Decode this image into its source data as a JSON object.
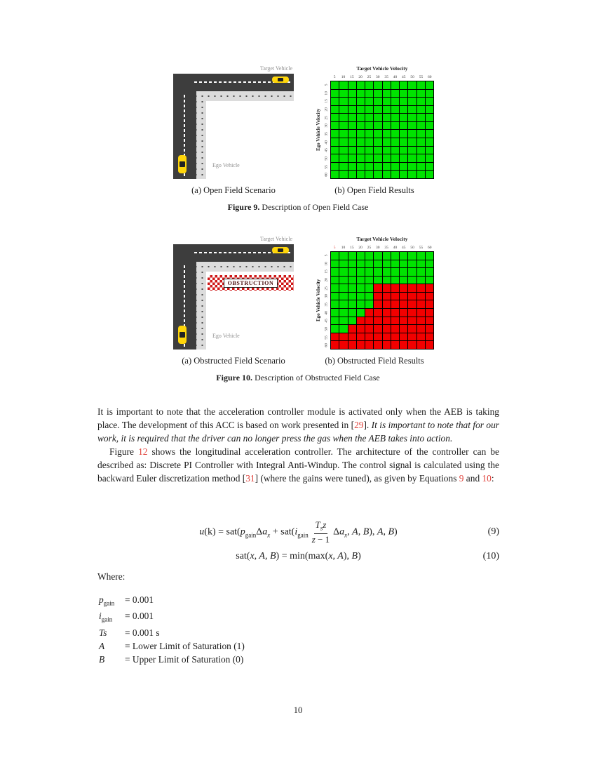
{
  "colors": {
    "green": "#00e300",
    "red": "#f20000",
    "ref_red": "#e0433c",
    "road": "#3d3d3d",
    "sidewalk": "#dcdcdc",
    "car_yellow": "#ffd60a",
    "checker_red": "#cf1717",
    "obstruction_text": "#4a0e0e",
    "label_gray": "#8f8f8f"
  },
  "figures": [
    {
      "scenario": {
        "target_label": "Target Vehicle",
        "ego_label": "Ego Vehicle",
        "caption": "(a) Open Field Scenario"
      },
      "results_caption": "(b) Open Field Results",
      "caption_label": "Figure 9.",
      "caption_text": " Description of Open Field Case"
    },
    {
      "scenario": {
        "target_label": "Target Vehicle",
        "ego_label": "Ego Vehicle",
        "obstruction_label": "OBSTRUCTION",
        "caption": "(a) Obstructed Field Scenario"
      },
      "results_caption": "(b) Obstructed Field Results",
      "caption_label": "Figure 10.",
      "caption_text": " Description of Obstructed Field Case"
    }
  ],
  "chart_data": [
    {
      "type": "heatmap",
      "title": "Target Vehicle Velocity",
      "xlabel": "Target Vehicle Velocity",
      "ylabel": "Ego Vehicle Velocity",
      "x_ticks": [
        "5",
        "10",
        "15",
        "20",
        "25",
        "30",
        "35",
        "40",
        "45",
        "50",
        "55",
        "60"
      ],
      "y_ticks": [
        "5",
        "10",
        "15",
        "20",
        "25",
        "30",
        "35",
        "40",
        "45",
        "50",
        "55",
        "60"
      ],
      "first_x_tick_red": false,
      "matrix": [
        "GGGGGGGGGGGG",
        "GGGGGGGGGGGG",
        "GGGGGGGGGGGG",
        "GGGGGGGGGGGG",
        "GGGGGGGGGGGG",
        "GGGGGGGGGGGG",
        "GGGGGGGGGGGG",
        "GGGGGGGGGGGG",
        "GGGGGGGGGGGG",
        "GGGGGGGGGGGG",
        "GGGGGGGGGGGG",
        "GGGGGGGGGGGG"
      ]
    },
    {
      "type": "heatmap",
      "title": "Target Vehicle Velocity",
      "xlabel": "Target Vehicle Velocity",
      "ylabel": "Ego Vehicle Velocity",
      "x_ticks": [
        "5",
        "10",
        "15",
        "20",
        "25",
        "30",
        "35",
        "40",
        "45",
        "50",
        "55",
        "60"
      ],
      "y_ticks": [
        "5",
        "10",
        "15",
        "20",
        "25",
        "30",
        "35",
        "40",
        "45",
        "50",
        "55",
        "60"
      ],
      "first_x_tick_red": true,
      "matrix": [
        "GGGGGGGGGGGG",
        "GGGGGGGGGGGG",
        "GGGGGGGGGGGG",
        "GGGGGGGGGGGG",
        "GGGGGRRRRRRR",
        "GGGGGRRRRRRR",
        "GGGGGRRRRRRR",
        "GGGGRRRRRRRR",
        "GGGRRRRRRRRR",
        "GGRRRRRRRRRR",
        "RRRRRRRRRRRR",
        "RRRRRRRRRRRR"
      ]
    }
  ],
  "paragraphs": [
    {
      "indent": false,
      "segments": [
        {
          "s": "n",
          "t": "It is important to note that the acceleration controller module is activated only when the AEB is taking place. The development of this ACC is based on work presented in ["
        },
        {
          "s": "r",
          "t": "29"
        },
        {
          "s": "n",
          "t": "]. "
        },
        {
          "s": "i",
          "t": "It is important to note that for our work, it is required that the driver can no longer press the gas when the AEB takes into action."
        }
      ]
    },
    {
      "indent": true,
      "segments": [
        {
          "s": "n",
          "t": "Figure "
        },
        {
          "s": "r",
          "t": "12"
        },
        {
          "s": "n",
          "t": " shows the longitudinal acceleration controller. The architecture of the controller can be described as: Discrete PI Controller with Integral Anti-Windup. The control signal is calculated using the backward Euler discretization method ["
        },
        {
          "s": "r",
          "t": "31"
        },
        {
          "s": "n",
          "t": "] (where the gains were tuned), as given by Equations "
        },
        {
          "s": "r",
          "t": "9"
        },
        {
          "s": "n",
          "t": " and "
        },
        {
          "s": "r",
          "t": "10"
        },
        {
          "s": "n",
          "t": ":"
        }
      ]
    }
  ],
  "equations": {
    "eq9": {
      "u": "u",
      "t1": "(k) = sat(",
      "p": "p",
      "sub_gain1": "gain",
      "delta1": "Δ",
      "a1": "a",
      "sub_x1": "x",
      "t2": " + sat(",
      "i": "i",
      "sub_gain2": "gain",
      "num_T": "T",
      "num_s": "s",
      "num_z": "z",
      "den_z": "z",
      "den_rest": " − 1",
      "delta2": "Δ",
      "a2": "a",
      "sub_x2": "x",
      "t3": ", ",
      "ab1": "A, B",
      "t4": "), ",
      "ab2": "A, B",
      "t5": ")",
      "number": "(9)"
    },
    "eq10": {
      "t1": "sat(",
      "v1": "x, A, B",
      "t2": ") = min(max(",
      "v2": "x, A",
      "t3": "), ",
      "v3": "B",
      "t4": ")",
      "number": "(10)"
    }
  },
  "where": {
    "label": "Where:",
    "rows": [
      {
        "lhs": "p",
        "sub": "gain",
        "rhs": "= 0.001"
      },
      {
        "lhs": "i",
        "sub": "gain",
        "rhs": "= 0.001"
      },
      {
        "lhs": "Ts",
        "sub": "",
        "rhs": "= 0.001 s"
      },
      {
        "lhs": "A",
        "sub": "",
        "rhs": "= Lower Limit of Saturation (1)"
      },
      {
        "lhs": "B",
        "sub": "",
        "rhs": "= Upper Limit of Saturation (0)"
      }
    ]
  },
  "page_number": "10"
}
